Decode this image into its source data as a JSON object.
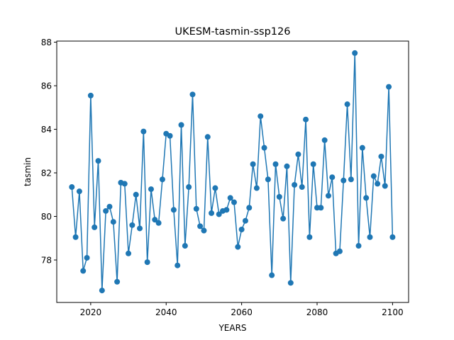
{
  "chart_data": {
    "type": "line",
    "title": "UKESM-tasmin-ssp126",
    "xlabel": "YEARS",
    "ylabel": "tasmin",
    "xlim": [
      2011,
      2104.25
    ],
    "ylim": [
      76.05,
      88.05
    ],
    "xticks": [
      2020,
      2040,
      2060,
      2080,
      2100
    ],
    "yticks": [
      78,
      80,
      82,
      84,
      86,
      88
    ],
    "grid": false,
    "markers": true,
    "color": "#1f77b4",
    "series": [
      {
        "x": [
          2015,
          2016,
          2017,
          2018,
          2019,
          2020,
          2021,
          2022,
          2023,
          2024,
          2025,
          2026,
          2027,
          2028,
          2029,
          2030,
          2031,
          2032,
          2033,
          2034,
          2035,
          2036,
          2037,
          2038,
          2039,
          2040,
          2041,
          2042,
          2043,
          2044,
          2045,
          2046,
          2047,
          2048,
          2049,
          2050,
          2051,
          2052,
          2053,
          2054,
          2055,
          2056,
          2057,
          2058,
          2059,
          2060,
          2061,
          2062,
          2063,
          2064,
          2065,
          2066,
          2067,
          2068,
          2069,
          2070,
          2071,
          2072,
          2073,
          2074,
          2075,
          2076,
          2077,
          2078,
          2079,
          2080,
          2081,
          2082,
          2083,
          2084,
          2085,
          2086,
          2087,
          2088,
          2089,
          2090,
          2091,
          2092,
          2093,
          2094,
          2095,
          2096,
          2097,
          2098,
          2099,
          2100
        ],
        "values": [
          81.35,
          79.05,
          81.15,
          77.5,
          78.1,
          85.55,
          79.5,
          82.55,
          76.6,
          80.25,
          80.45,
          79.75,
          77.0,
          81.55,
          81.5,
          78.3,
          79.6,
          81.0,
          79.45,
          83.9,
          77.9,
          81.25,
          79.85,
          79.7,
          81.7,
          83.8,
          83.7,
          80.3,
          77.75,
          84.2,
          78.65,
          81.35,
          85.6,
          80.35,
          79.55,
          79.35,
          83.65,
          80.15,
          81.3,
          80.1,
          80.25,
          80.3,
          80.85,
          80.65,
          78.6,
          79.4,
          79.8,
          80.4,
          82.4,
          81.3,
          84.6,
          83.15,
          81.7,
          77.3,
          82.4,
          80.9,
          79.9,
          82.3,
          76.95,
          81.45,
          82.85,
          81.35,
          84.45,
          79.05,
          82.4,
          80.4,
          80.4,
          83.5,
          80.95,
          81.8,
          78.3,
          78.4,
          81.65,
          85.15,
          81.7,
          87.5,
          78.65,
          83.15,
          80.85,
          79.05,
          81.85,
          81.5,
          82.75,
          81.4,
          85.95,
          79.05
        ]
      }
    ]
  }
}
